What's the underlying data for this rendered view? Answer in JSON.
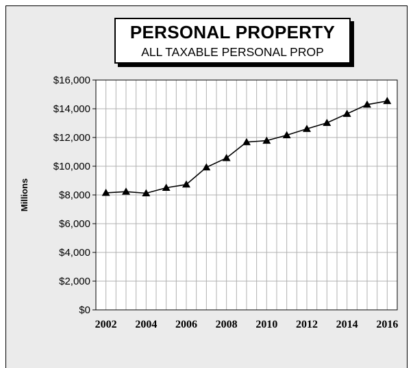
{
  "chart_data": {
    "type": "line",
    "title": "PERSONAL PROPERTY",
    "subtitle": "ALL TAXABLE PERSONAL PROP",
    "xlabel": "",
    "ylabel": "Millions",
    "x": [
      2002,
      2003,
      2004,
      2005,
      2006,
      2007,
      2008,
      2009,
      2010,
      2011,
      2012,
      2013,
      2014,
      2015,
      2016
    ],
    "series": [
      {
        "values": [
          8150,
          8230,
          8120,
          8500,
          8730,
          9920,
          10570,
          11680,
          11780,
          12160,
          12600,
          13020,
          13650,
          14290,
          14540
        ]
      }
    ],
    "xlim": [
      2002,
      2016
    ],
    "ylim": [
      0,
      16000
    ],
    "yticks": [
      "$0",
      "$2,000",
      "$4,000",
      "$6,000",
      "$8,000",
      "$10,000",
      "$12,000",
      "$14,000",
      "$16,000"
    ],
    "xticks": [
      "2002",
      "2004",
      "2006",
      "2008",
      "2010",
      "2012",
      "2014",
      "2016"
    ],
    "grid": true,
    "marker": "triangle",
    "colors": {
      "plot_background": "#ffffff",
      "frame_background": "#ebebeb",
      "line": "#000000",
      "grid": "#b0b0b0"
    }
  }
}
